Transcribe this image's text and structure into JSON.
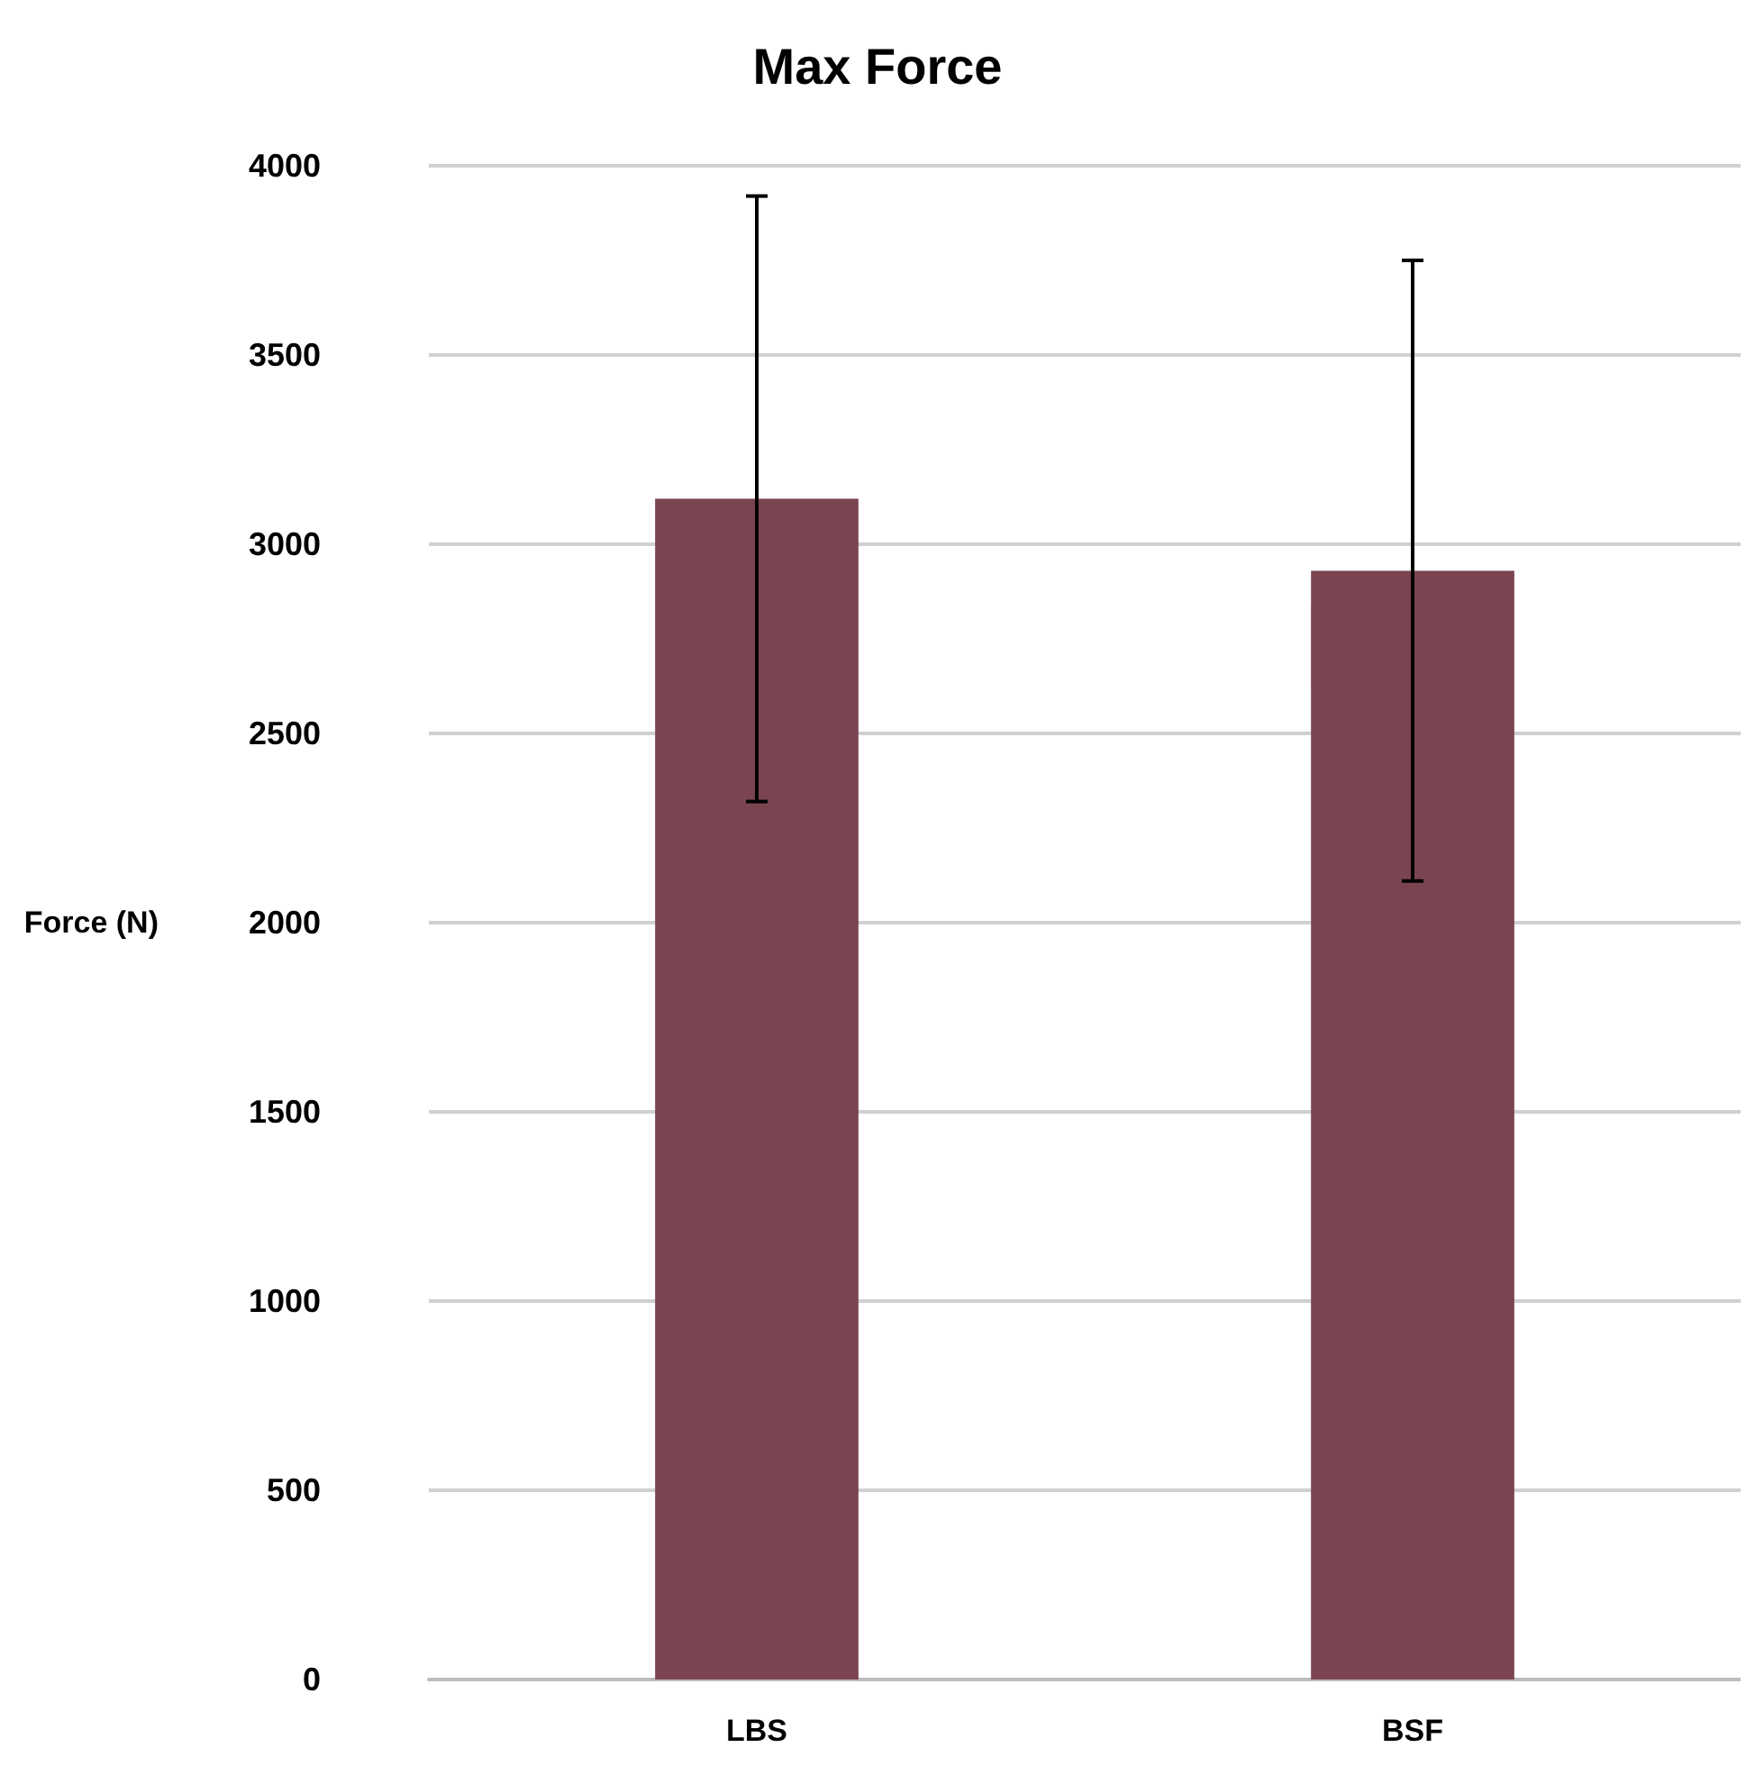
{
  "chart_data": {
    "type": "bar",
    "title": "Max Force",
    "ylabel": "Force (N)",
    "categories": [
      "LBS",
      "BSF"
    ],
    "values": [
      3120,
      2930
    ],
    "errors": [
      800,
      820
    ],
    "color": "#7a4550",
    "ylim": [
      0,
      4000
    ],
    "yticks": [
      0,
      500,
      1000,
      1500,
      2000,
      2500,
      3000,
      3500,
      4000
    ],
    "grid": "y"
  }
}
